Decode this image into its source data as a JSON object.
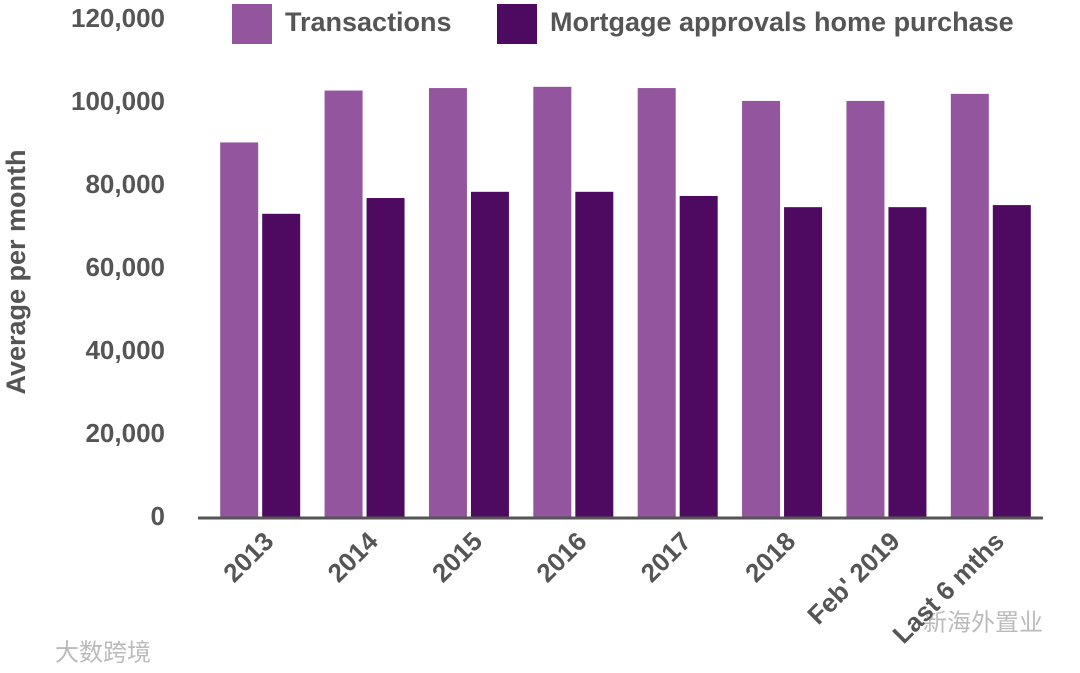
{
  "chart_data": {
    "type": "bar",
    "ylabel": "Average per month",
    "categories": [
      "2013",
      "2014",
      "2015",
      "2016",
      "2017",
      "2018",
      "Feb' 2019",
      "Last 6 mths"
    ],
    "series": [
      {
        "name": "Transactions",
        "color": "#93569e",
        "values": [
          90500,
          103000,
          103600,
          103900,
          103600,
          100500,
          100500,
          102200
        ]
      },
      {
        "name": "Mortgage approvals home purchase",
        "color": "#4d0a60",
        "values": [
          73300,
          77100,
          78600,
          78600,
          77600,
          74900,
          74900,
          75400
        ]
      }
    ],
    "ylim": [
      0,
      120000
    ],
    "yticks": [
      0,
      {
        "value": 20000,
        "label": "20,000"
      },
      {
        "value": 40000,
        "label": "40,000"
      },
      {
        "value": 60000,
        "label": "60,000"
      },
      {
        "value": 80000,
        "label": "80,000"
      },
      {
        "value": 100000,
        "label": "100,000"
      },
      {
        "value": 120000,
        "label": "120,000"
      }
    ]
  },
  "watermarks": [
    "大数跨境",
    "新海外置业"
  ]
}
